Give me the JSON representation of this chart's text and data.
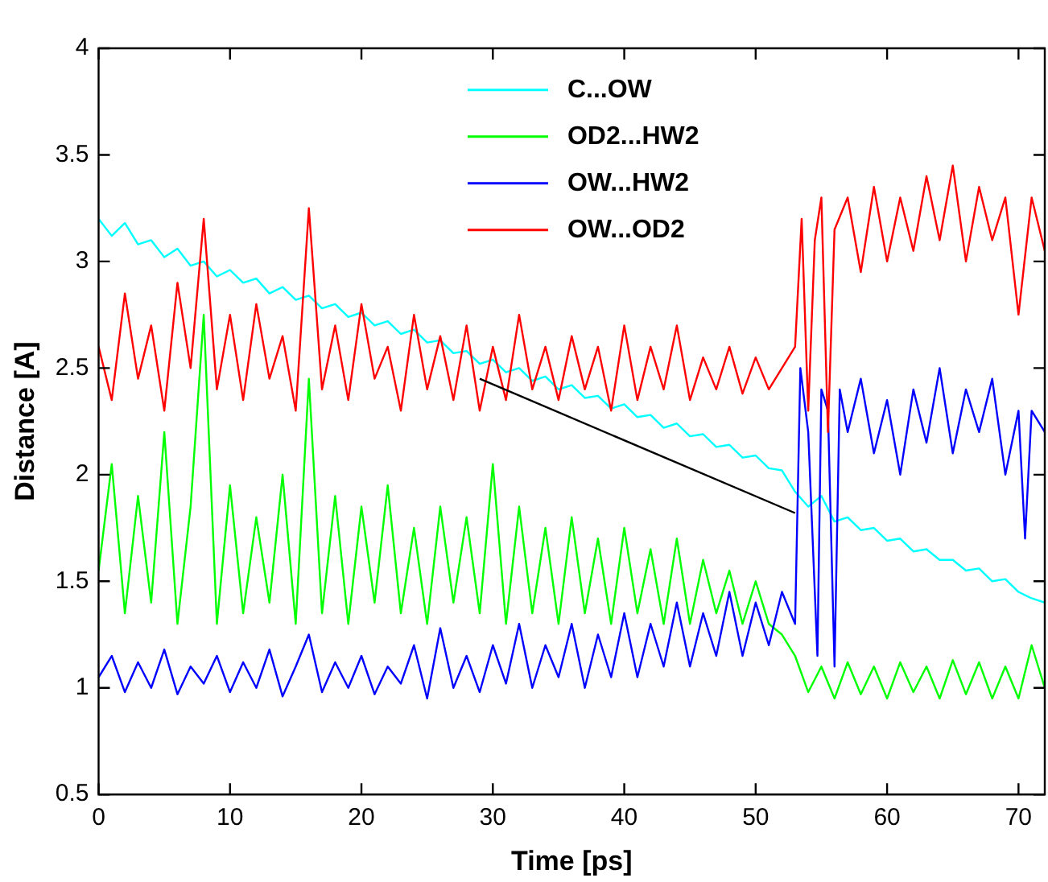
{
  "chart_data": {
    "type": "line",
    "xlabel": "Time [ps]",
    "ylabel": "Distance [A]",
    "xlim": [
      0,
      72
    ],
    "xticks": [
      0,
      10,
      20,
      30,
      40,
      50,
      60,
      70
    ],
    "ylim": [
      0.5,
      4
    ],
    "yticks": [
      0.5,
      1,
      1.5,
      2,
      2.5,
      3,
      3.5,
      4
    ],
    "grid": false,
    "legend": "top",
    "marker": "none",
    "line_style": "solid",
    "series": [
      {
        "name": "C...OW",
        "color": "#00ffff",
        "x": [
          0,
          1,
          2,
          3,
          4,
          5,
          6,
          7,
          8,
          9,
          10,
          11,
          12,
          13,
          14,
          15,
          16,
          17,
          18,
          19,
          20,
          21,
          22,
          23,
          24,
          25,
          26,
          27,
          28,
          29,
          30,
          31,
          32,
          33,
          34,
          35,
          36,
          37,
          38,
          39,
          40,
          41,
          42,
          43,
          44,
          45,
          46,
          47,
          48,
          49,
          50,
          51,
          52,
          53,
          54,
          55,
          56,
          57,
          58,
          59,
          60,
          61,
          62,
          63,
          64,
          65,
          66,
          67,
          68,
          69,
          70,
          71,
          72
        ],
        "values": [
          3.2,
          3.12,
          3.18,
          3.08,
          3.1,
          3.02,
          3.06,
          2.98,
          3.0,
          2.93,
          2.96,
          2.9,
          2.92,
          2.85,
          2.88,
          2.82,
          2.84,
          2.78,
          2.8,
          2.74,
          2.76,
          2.7,
          2.72,
          2.66,
          2.68,
          2.62,
          2.63,
          2.57,
          2.58,
          2.52,
          2.54,
          2.48,
          2.5,
          2.44,
          2.46,
          2.4,
          2.42,
          2.36,
          2.37,
          2.31,
          2.33,
          2.27,
          2.28,
          2.22,
          2.24,
          2.18,
          2.19,
          2.13,
          2.14,
          2.08,
          2.09,
          2.03,
          2.02,
          1.92,
          1.85,
          1.9,
          1.78,
          1.8,
          1.74,
          1.75,
          1.69,
          1.7,
          1.64,
          1.65,
          1.6,
          1.6,
          1.55,
          1.56,
          1.5,
          1.51,
          1.45,
          1.42,
          1.4
        ]
      },
      {
        "name": "OD2...HW2",
        "color": "#00ff00",
        "x": [
          0,
          1,
          2,
          3,
          4,
          5,
          6,
          7,
          8,
          9,
          10,
          11,
          12,
          13,
          14,
          15,
          16,
          17,
          18,
          19,
          20,
          21,
          22,
          23,
          24,
          25,
          26,
          27,
          28,
          29,
          30,
          31,
          32,
          33,
          34,
          35,
          36,
          37,
          38,
          39,
          40,
          41,
          42,
          43,
          44,
          45,
          46,
          47,
          48,
          49,
          50,
          51,
          52,
          53,
          54,
          55,
          56,
          57,
          58,
          59,
          60,
          61,
          62,
          63,
          64,
          65,
          66,
          67,
          68,
          69,
          70,
          71,
          72
        ],
        "values": [
          1.55,
          2.05,
          1.35,
          1.9,
          1.4,
          2.2,
          1.3,
          1.85,
          2.75,
          1.3,
          1.95,
          1.35,
          1.8,
          1.4,
          2.0,
          1.3,
          2.45,
          1.35,
          1.9,
          1.3,
          1.85,
          1.4,
          1.95,
          1.35,
          1.75,
          1.3,
          1.85,
          1.4,
          1.8,
          1.35,
          2.05,
          1.3,
          1.85,
          1.35,
          1.75,
          1.3,
          1.8,
          1.35,
          1.7,
          1.3,
          1.75,
          1.35,
          1.65,
          1.3,
          1.7,
          1.3,
          1.6,
          1.35,
          1.55,
          1.3,
          1.5,
          1.3,
          1.25,
          1.15,
          0.98,
          1.1,
          0.95,
          1.12,
          0.97,
          1.1,
          0.95,
          1.12,
          0.98,
          1.1,
          0.95,
          1.13,
          0.97,
          1.12,
          0.95,
          1.1,
          0.95,
          1.2,
          1.0
        ]
      },
      {
        "name": "OW...HW2",
        "color": "#0000ff",
        "x": [
          0,
          1,
          2,
          3,
          4,
          5,
          6,
          7,
          8,
          9,
          10,
          11,
          12,
          13,
          14,
          15,
          16,
          17,
          18,
          19,
          20,
          21,
          22,
          23,
          24,
          25,
          26,
          27,
          28,
          29,
          30,
          31,
          32,
          33,
          34,
          35,
          36,
          37,
          38,
          39,
          40,
          41,
          42,
          43,
          44,
          45,
          46,
          47,
          48,
          49,
          50,
          51,
          52,
          53,
          53.4,
          54,
          54.7,
          55,
          55.5,
          56,
          56.4,
          57,
          58,
          59,
          60,
          61,
          62,
          63,
          64,
          65,
          66,
          67,
          68,
          69,
          70,
          70.5,
          71,
          72
        ],
        "values": [
          1.05,
          1.15,
          0.98,
          1.12,
          1.0,
          1.18,
          0.97,
          1.1,
          1.02,
          1.15,
          0.98,
          1.12,
          1.0,
          1.18,
          0.96,
          1.1,
          1.25,
          0.98,
          1.12,
          1.0,
          1.15,
          0.97,
          1.1,
          1.02,
          1.2,
          0.95,
          1.28,
          1.0,
          1.15,
          0.98,
          1.2,
          1.02,
          1.3,
          1.0,
          1.2,
          1.05,
          1.3,
          1.0,
          1.25,
          1.05,
          1.35,
          1.05,
          1.3,
          1.1,
          1.4,
          1.1,
          1.35,
          1.15,
          1.45,
          1.15,
          1.4,
          1.2,
          1.45,
          1.3,
          2.5,
          2.2,
          1.15,
          2.4,
          2.3,
          1.1,
          2.4,
          2.2,
          2.45,
          2.1,
          2.35,
          2.0,
          2.4,
          2.15,
          2.5,
          2.1,
          2.4,
          2.2,
          2.45,
          2.0,
          2.3,
          1.7,
          2.3,
          2.2
        ]
      },
      {
        "name": "OW...OD2",
        "color": "#ff0000",
        "x": [
          0,
          1,
          2,
          3,
          4,
          5,
          6,
          7,
          8,
          9,
          10,
          11,
          12,
          13,
          14,
          15,
          16,
          17,
          18,
          19,
          20,
          21,
          22,
          23,
          24,
          25,
          26,
          27,
          28,
          29,
          30,
          31,
          32,
          33,
          34,
          35,
          36,
          37,
          38,
          39,
          40,
          41,
          42,
          43,
          44,
          45,
          46,
          47,
          48,
          49,
          50,
          51,
          52,
          53,
          53.5,
          54,
          54.5,
          55,
          55.5,
          56,
          57,
          58,
          59,
          60,
          61,
          62,
          63,
          64,
          65,
          66,
          67,
          68,
          69,
          70,
          71,
          72
        ],
        "values": [
          2.6,
          2.35,
          2.85,
          2.45,
          2.7,
          2.3,
          2.9,
          2.5,
          3.2,
          2.4,
          2.75,
          2.35,
          2.8,
          2.45,
          2.65,
          2.3,
          3.25,
          2.4,
          2.7,
          2.35,
          2.8,
          2.45,
          2.6,
          2.3,
          2.75,
          2.4,
          2.65,
          2.35,
          2.7,
          2.3,
          2.6,
          2.35,
          2.75,
          2.4,
          2.6,
          2.35,
          2.65,
          2.4,
          2.6,
          2.3,
          2.7,
          2.35,
          2.6,
          2.4,
          2.7,
          2.35,
          2.55,
          2.4,
          2.6,
          2.38,
          2.55,
          2.4,
          2.5,
          2.6,
          3.2,
          2.3,
          3.1,
          3.3,
          2.2,
          3.15,
          3.3,
          2.95,
          3.35,
          3.0,
          3.3,
          3.05,
          3.4,
          3.1,
          3.45,
          3.0,
          3.35,
          3.1,
          3.3,
          2.75,
          3.3,
          3.05
        ]
      },
      {
        "color": "#000000",
        "x": [
          29,
          53
        ],
        "values": [
          2.45,
          1.82
        ]
      }
    ]
  }
}
